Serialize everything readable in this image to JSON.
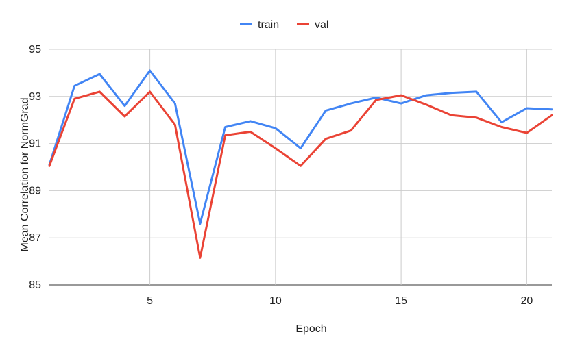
{
  "chart_data": {
    "type": "line",
    "title": "",
    "xlabel": "Epoch",
    "ylabel": "Mean Correlation for NormGrad",
    "xlim": [
      1,
      21
    ],
    "ylim": [
      85,
      95
    ],
    "x_ticks": [
      5,
      10,
      15,
      20
    ],
    "y_ticks": [
      85,
      87,
      89,
      91,
      93,
      95
    ],
    "grid": true,
    "legend_position": "top-center",
    "x": [
      1,
      2,
      3,
      4,
      5,
      6,
      7,
      8,
      9,
      10,
      11,
      12,
      13,
      14,
      15,
      16,
      17,
      18,
      19,
      20,
      21
    ],
    "series": [
      {
        "name": "train",
        "color": "#4285f4",
        "values": [
          90.1,
          93.45,
          93.95,
          92.6,
          94.1,
          92.7,
          87.6,
          91.7,
          91.95,
          91.65,
          90.8,
          92.4,
          92.7,
          92.95,
          92.7,
          93.05,
          93.15,
          93.2,
          91.9,
          92.5,
          92.45
        ]
      },
      {
        "name": "val",
        "color": "#ea4335",
        "values": [
          90.05,
          92.9,
          93.2,
          92.15,
          93.2,
          91.8,
          86.15,
          91.35,
          91.5,
          90.8,
          90.05,
          91.2,
          91.55,
          92.85,
          93.05,
          92.65,
          92.2,
          92.1,
          91.7,
          91.45,
          92.2
        ]
      }
    ]
  }
}
